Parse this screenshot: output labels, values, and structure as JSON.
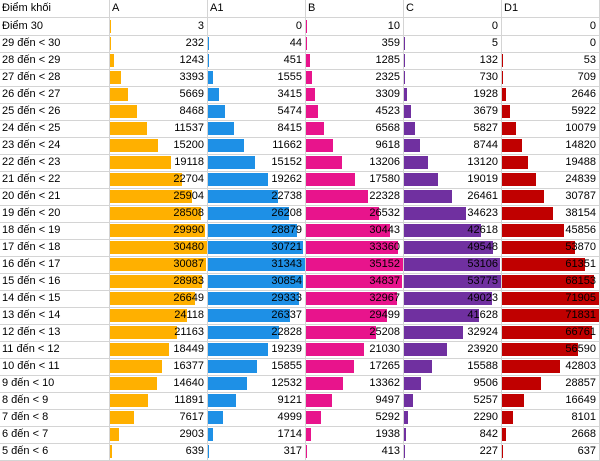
{
  "header": {
    "label": "Điểm khối",
    "cols": [
      "A",
      "A1",
      "B",
      "C",
      "D1"
    ]
  },
  "colors": [
    "#FFB000",
    "#1E90E6",
    "#E8148C",
    "#7030A0",
    "#C00000"
  ],
  "rows": [
    {
      "label": "Điểm 30",
      "values": [
        3,
        0,
        10,
        0,
        0
      ]
    },
    {
      "label": "29 đến < 30",
      "values": [
        232,
        44,
        359,
        5,
        0
      ]
    },
    {
      "label": "28 đến < 29",
      "values": [
        1243,
        451,
        1285,
        132,
        53
      ]
    },
    {
      "label": "27 đến < 28",
      "values": [
        3393,
        1555,
        2325,
        730,
        709
      ]
    },
    {
      "label": "26 đến < 27",
      "values": [
        5669,
        3415,
        3309,
        1928,
        2646
      ]
    },
    {
      "label": "25 đến < 26",
      "values": [
        8468,
        5474,
        4523,
        3679,
        5922
      ]
    },
    {
      "label": "24 đến < 25",
      "values": [
        11537,
        8415,
        6568,
        5827,
        10079
      ]
    },
    {
      "label": "23 đến < 24",
      "values": [
        15200,
        11662,
        9618,
        8744,
        14820
      ]
    },
    {
      "label": "22 đến < 23",
      "values": [
        19118,
        15152,
        13206,
        13120,
        19488
      ]
    },
    {
      "label": "21 đến < 22",
      "values": [
        22704,
        19262,
        17580,
        19019,
        24839
      ]
    },
    {
      "label": "20 đến < 21",
      "values": [
        25904,
        22738,
        22328,
        26461,
        30787
      ]
    },
    {
      "label": "19 đến < 20",
      "values": [
        28508,
        26208,
        26532,
        34623,
        38154
      ]
    },
    {
      "label": "18 đến < 19",
      "values": [
        29990,
        28879,
        30443,
        42618,
        45856
      ]
    },
    {
      "label": "17 đến < 18",
      "values": [
        30480,
        30721,
        33360,
        49548,
        53870
      ]
    },
    {
      "label": "16 đến < 17",
      "values": [
        30087,
        31343,
        35152,
        53106,
        61351
      ]
    },
    {
      "label": "15 đến < 16",
      "values": [
        28983,
        30854,
        34837,
        53775,
        68153
      ]
    },
    {
      "label": "14 đến < 15",
      "values": [
        26649,
        29333,
        32967,
        49023,
        71905
      ]
    },
    {
      "label": "13 đến < 14",
      "values": [
        24118,
        26337,
        29499,
        41628,
        71831
      ]
    },
    {
      "label": "12 đến < 13",
      "values": [
        21163,
        22828,
        25208,
        32924,
        66761
      ]
    },
    {
      "label": "11 đến < 12",
      "values": [
        18449,
        19239,
        21030,
        23920,
        56590
      ]
    },
    {
      "label": "10 đến < 11",
      "values": [
        16377,
        15855,
        17265,
        15588,
        42803
      ]
    },
    {
      "label": "9 đến < 10",
      "values": [
        14640,
        12532,
        13362,
        9506,
        28857
      ]
    },
    {
      "label": "8 đến < 9",
      "values": [
        11891,
        9121,
        9497,
        5257,
        16649
      ]
    },
    {
      "label": "7 đến < 8",
      "values": [
        7617,
        4999,
        5292,
        2290,
        8101
      ]
    },
    {
      "label": "6 đến < 7",
      "values": [
        2903,
        1714,
        1938,
        842,
        2668
      ]
    },
    {
      "label": "5 đến < 6",
      "values": [
        639,
        317,
        413,
        227,
        637
      ]
    }
  ]
}
